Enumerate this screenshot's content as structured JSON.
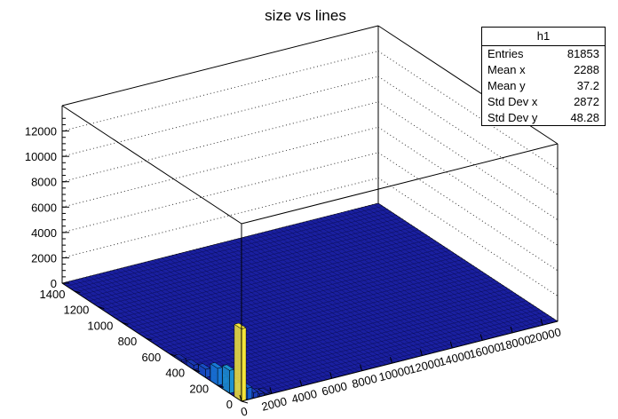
{
  "chart_data": {
    "type": "lego",
    "title": "size vs lines",
    "x_range": [
      0,
      21000
    ],
    "y_range": [
      0,
      1500
    ],
    "z_range": [
      0,
      14000
    ],
    "x_ticks": [
      "0",
      "2000",
      "4000",
      "6000",
      "8000",
      "10000",
      "12000",
      "14000",
      "16000",
      "18000",
      "20000"
    ],
    "x_tick_values": [
      0,
      2000,
      4000,
      6000,
      8000,
      10000,
      12000,
      14000,
      16000,
      18000,
      20000
    ],
    "y_ticks": [
      "0",
      "200",
      "400",
      "600",
      "800",
      "1000",
      "1200",
      "1400"
    ],
    "y_tick_values": [
      0,
      200,
      400,
      600,
      800,
      1000,
      1200,
      1400
    ],
    "z_ticks": [
      "0",
      "2000",
      "4000",
      "6000",
      "8000",
      "10000",
      "12000"
    ],
    "z_tick_values": [
      0,
      2000,
      4000,
      6000,
      8000,
      10000,
      12000
    ],
    "grid": true,
    "colormap": "viridis-like",
    "base_color": "#1a1fa0",
    "peak_color": "#f5e53a",
    "bins": [
      {
        "x": 0,
        "y": 0,
        "z": 5700
      },
      {
        "x": 0,
        "y": 100,
        "z": 1800
      },
      {
        "x": 0,
        "y": 200,
        "z": 1350
      },
      {
        "x": 0,
        "y": 300,
        "z": 650
      },
      {
        "x": 0,
        "y": 400,
        "z": 350
      },
      {
        "x": 0,
        "y": 500,
        "z": 150
      },
      {
        "x": 400,
        "y": 0,
        "z": 900
      },
      {
        "x": 400,
        "y": 100,
        "z": 700
      },
      {
        "x": 400,
        "y": 200,
        "z": 500
      },
      {
        "x": 800,
        "y": 0,
        "z": 420
      },
      {
        "x": 800,
        "y": 100,
        "z": 300
      },
      {
        "x": 1200,
        "y": 0,
        "z": 200
      },
      {
        "x": 1600,
        "y": 0,
        "z": 110
      }
    ]
  },
  "stats": {
    "name": "h1",
    "rows": [
      {
        "label": "Entries",
        "value": "81853"
      },
      {
        "label": "Mean x",
        "value": "2288"
      },
      {
        "label": "Mean y",
        "value": "37.2"
      },
      {
        "label": "Std Dev x",
        "value": "2872"
      },
      {
        "label": "Std Dev y",
        "value": "48.28"
      }
    ]
  }
}
